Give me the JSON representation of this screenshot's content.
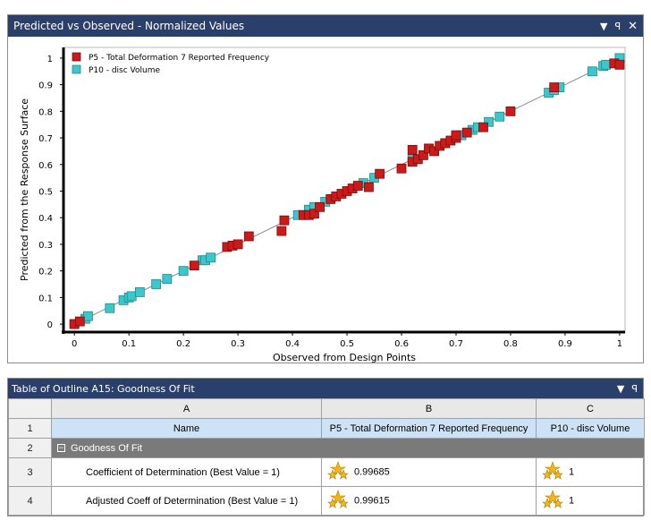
{
  "chart_panel": {
    "title": "Predicted vs Observed - Normalized Values",
    "icons": [
      "dropdown-arrow-icon",
      "pin-icon",
      "close-icon"
    ]
  },
  "chart_data": {
    "type": "scatter",
    "xlabel": "Observed from Design Points",
    "ylabel": "Predicted from the Response Surface",
    "xlim": [
      -0.02,
      1.01
    ],
    "ylim": [
      -0.03,
      1.04
    ],
    "xticks": [
      "0",
      "0.1",
      "0.2",
      "0.3",
      "0.4",
      "0.5",
      "0.6",
      "0.7",
      "0.8",
      "0.9",
      "1"
    ],
    "yticks": [
      "0",
      "0.1",
      "0.2",
      "0.3",
      "0.4",
      "0.5",
      "0.6",
      "0.7",
      "0.8",
      "0.9",
      "1"
    ],
    "grid": false,
    "legend_position": "top-left",
    "fit_line": [
      [
        0,
        0
      ],
      [
        1,
        1
      ]
    ],
    "series": [
      {
        "name": "P5 - Total Deformation 7 Reported Frequency",
        "color": "#cc1a1a",
        "points": [
          [
            0.0,
            0.0
          ],
          [
            0.01,
            0.01
          ],
          [
            0.22,
            0.22
          ],
          [
            0.28,
            0.29
          ],
          [
            0.29,
            0.295
          ],
          [
            0.3,
            0.3
          ],
          [
            0.32,
            0.33
          ],
          [
            0.38,
            0.35
          ],
          [
            0.385,
            0.39
          ],
          [
            0.42,
            0.41
          ],
          [
            0.43,
            0.41
          ],
          [
            0.44,
            0.415
          ],
          [
            0.45,
            0.44
          ],
          [
            0.47,
            0.47
          ],
          [
            0.48,
            0.48
          ],
          [
            0.49,
            0.49
          ],
          [
            0.5,
            0.5
          ],
          [
            0.51,
            0.51
          ],
          [
            0.52,
            0.52
          ],
          [
            0.54,
            0.515
          ],
          [
            0.56,
            0.565
          ],
          [
            0.6,
            0.585
          ],
          [
            0.62,
            0.61
          ],
          [
            0.62,
            0.655
          ],
          [
            0.63,
            0.62
          ],
          [
            0.64,
            0.635
          ],
          [
            0.65,
            0.66
          ],
          [
            0.66,
            0.65
          ],
          [
            0.67,
            0.67
          ],
          [
            0.68,
            0.68
          ],
          [
            0.69,
            0.69
          ],
          [
            0.7,
            0.7
          ],
          [
            0.7,
            0.71
          ],
          [
            0.72,
            0.72
          ],
          [
            0.75,
            0.74
          ],
          [
            0.8,
            0.8
          ],
          [
            0.88,
            0.89
          ],
          [
            0.99,
            0.98
          ],
          [
            1.0,
            0.975
          ]
        ]
      },
      {
        "name": "P10 - disc Volume",
        "color": "#3ac8cc",
        "points": [
          [
            0.0,
            0.0
          ],
          [
            0.02,
            0.02
          ],
          [
            0.025,
            0.03
          ],
          [
            0.065,
            0.06
          ],
          [
            0.09,
            0.09
          ],
          [
            0.1,
            0.1
          ],
          [
            0.105,
            0.105
          ],
          [
            0.12,
            0.12
          ],
          [
            0.15,
            0.15
          ],
          [
            0.17,
            0.17
          ],
          [
            0.2,
            0.2
          ],
          [
            0.235,
            0.24
          ],
          [
            0.24,
            0.24
          ],
          [
            0.25,
            0.25
          ],
          [
            0.41,
            0.41
          ],
          [
            0.43,
            0.43
          ],
          [
            0.44,
            0.44
          ],
          [
            0.46,
            0.46
          ],
          [
            0.53,
            0.53
          ],
          [
            0.55,
            0.55
          ],
          [
            0.62,
            0.62
          ],
          [
            0.68,
            0.68
          ],
          [
            0.71,
            0.71
          ],
          [
            0.73,
            0.73
          ],
          [
            0.74,
            0.74
          ],
          [
            0.76,
            0.76
          ],
          [
            0.78,
            0.78
          ],
          [
            0.87,
            0.87
          ],
          [
            0.88,
            0.88
          ],
          [
            0.89,
            0.89
          ],
          [
            0.95,
            0.95
          ],
          [
            0.97,
            0.97
          ],
          [
            0.975,
            0.975
          ],
          [
            1.0,
            1.0
          ]
        ]
      }
    ]
  },
  "table": {
    "title": "Table of Outline A15: Goodness Of Fit",
    "columns": [
      "A",
      "B",
      "C"
    ],
    "rows": [
      {
        "num": "1",
        "a": "Name",
        "b": "P5 - Total Deformation 7 Reported Frequency",
        "c": "P10 - disc Volume"
      },
      {
        "num": "2",
        "a": "Goodness Of Fit"
      },
      {
        "num": "3",
        "a": "Coefficient of Determination (Best Value = 1)",
        "b": "0.99685",
        "c": "1"
      },
      {
        "num": "4",
        "a": "Adjusted Coeff of Determination (Best Value = 1)",
        "b": "0.99615",
        "c": "1"
      }
    ],
    "icons": [
      "dropdown-arrow-icon",
      "pin-icon"
    ],
    "star_icon": "three-stars-rating-icon",
    "collapse_icon": "collapse-minus-icon"
  }
}
